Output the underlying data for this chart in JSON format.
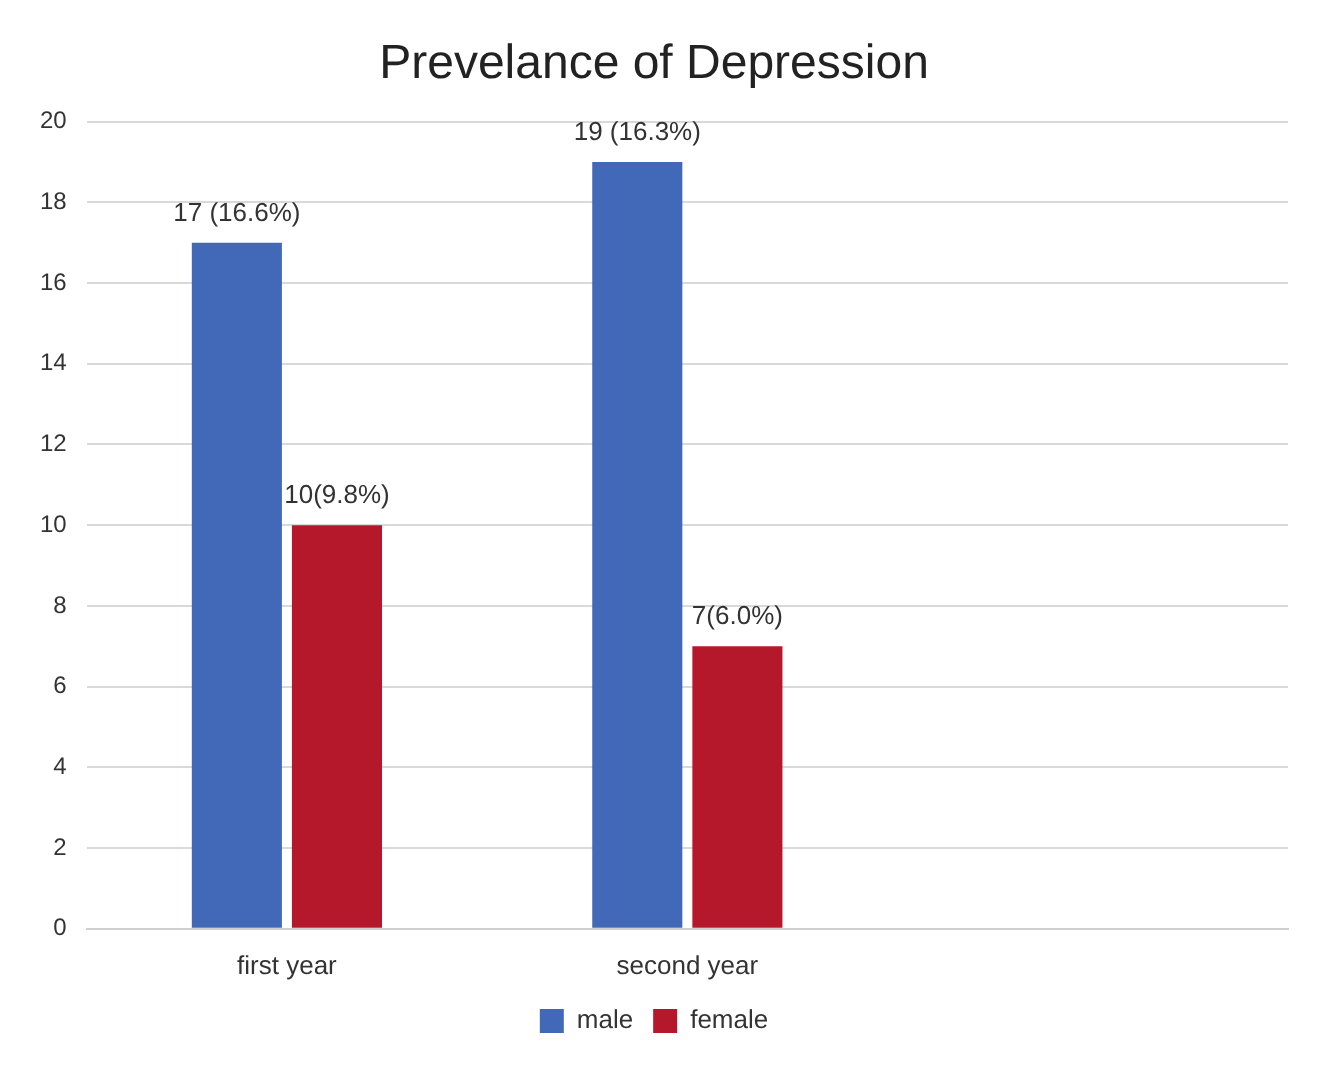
{
  "chart_data": {
    "type": "bar",
    "title": "Prevelance of Depression",
    "categories": [
      "first year",
      "second year",
      null
    ],
    "series": [
      {
        "name": "male",
        "color": "#4169b8",
        "values": [
          17,
          19,
          null
        ],
        "value_labels": [
          "17 (16.6%)",
          "19 (16.3%)",
          null
        ]
      },
      {
        "name": "female",
        "color": "#b5182b",
        "values": [
          10,
          7,
          null
        ],
        "value_labels": [
          "10(9.8%)",
          "7(6.0%)",
          null
        ]
      }
    ],
    "ylim": [
      0,
      20
    ],
    "yticks": [
      0,
      2,
      4,
      6,
      8,
      10,
      12,
      14,
      16,
      18,
      20
    ],
    "grid": "y",
    "legend": "bottom"
  }
}
